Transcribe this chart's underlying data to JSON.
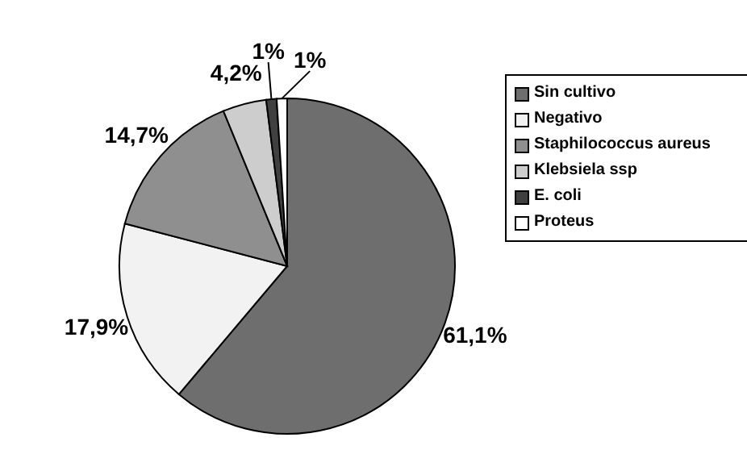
{
  "chart_data": {
    "type": "pie",
    "categories": [
      "Sin cultivo",
      "Negativo",
      "Staphilococcus aureus",
      "Klebsiela ssp",
      "E. coli",
      "Proteus"
    ],
    "values": [
      61.1,
      17.9,
      14.7,
      4.2,
      1,
      1
    ],
    "value_labels": [
      "61,1%",
      "17,9%",
      "14,7%",
      "4,2%",
      "1%",
      "1%"
    ],
    "colors": [
      "#6e6e6e",
      "#f2f2f2",
      "#8f8f8f",
      "#cdcdcd",
      "#404040",
      "#ffffff"
    ],
    "legend": "right"
  }
}
